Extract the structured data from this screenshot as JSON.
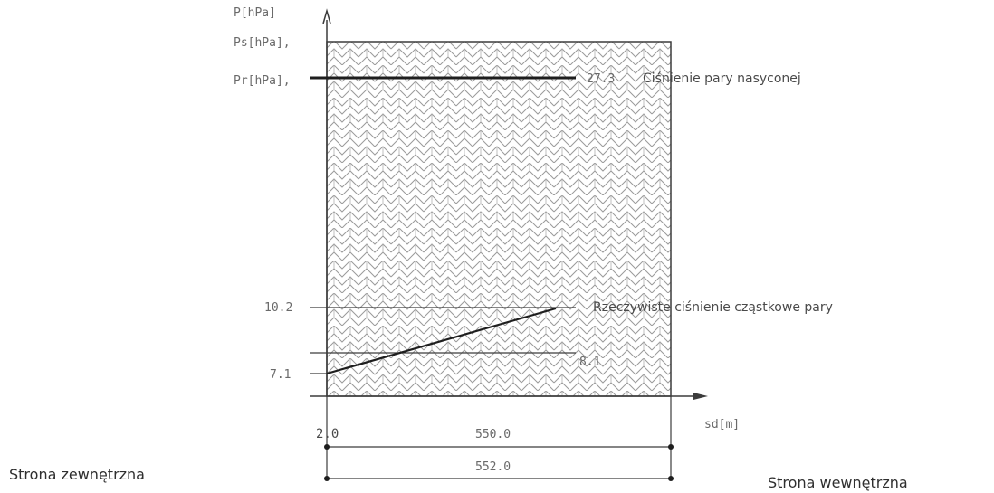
{
  "axes": {
    "y_label": "P[hPa]",
    "ps_label": "Ps[hPa],",
    "pr_label": "Pr[hPa],",
    "x_label": "sd[m]"
  },
  "saturation": {
    "value_label": "27.3",
    "description": "Ciśnienie pary nasyconej"
  },
  "partial": {
    "left_value": "7.1",
    "upper_value": "10.2",
    "lower_value": "8.1",
    "description": "Rzeczywiste ciśnienie cząstkowe pary"
  },
  "dimensions": {
    "origin_label": "2.0",
    "span_label": "550.0",
    "total_label": "552.0"
  },
  "sides": {
    "outside": "Strona zewnętrzna",
    "inside": "Strona wewnętrzna"
  }
}
